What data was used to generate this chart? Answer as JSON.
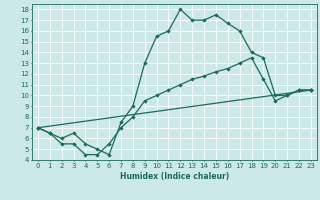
{
  "title": "",
  "xlabel": "Humidex (Indice chaleur)",
  "bg_color": "#cce8e8",
  "line_color": "#1a6b5a",
  "grid_color": "#b0d8d8",
  "xlim": [
    -0.5,
    23.5
  ],
  "ylim": [
    4,
    18.5
  ],
  "xticks": [
    0,
    1,
    2,
    3,
    4,
    5,
    6,
    7,
    8,
    9,
    10,
    11,
    12,
    13,
    14,
    15,
    16,
    17,
    18,
    19,
    20,
    21,
    22,
    23
  ],
  "yticks": [
    4,
    5,
    6,
    7,
    8,
    9,
    10,
    11,
    12,
    13,
    14,
    15,
    16,
    17,
    18
  ],
  "line1_x": [
    0,
    1,
    2,
    3,
    4,
    5,
    6,
    7,
    8,
    9,
    10,
    11,
    12,
    13,
    14,
    15,
    16,
    17,
    18,
    19,
    20,
    21,
    22,
    23
  ],
  "line1_y": [
    7.0,
    6.5,
    6.0,
    6.5,
    5.5,
    5.0,
    4.5,
    7.5,
    9.0,
    13.0,
    15.5,
    16.0,
    18.0,
    17.0,
    17.0,
    17.5,
    16.7,
    16.0,
    14.0,
    13.5,
    10.0,
    10.0,
    10.5,
    10.5
  ],
  "line2_x": [
    0,
    1,
    2,
    3,
    4,
    5,
    6,
    7,
    8,
    9,
    10,
    11,
    12,
    13,
    14,
    15,
    16,
    17,
    18,
    19,
    20,
    21,
    22,
    23
  ],
  "line2_y": [
    7.0,
    6.5,
    5.5,
    5.5,
    4.5,
    4.5,
    5.5,
    7.0,
    8.0,
    9.5,
    10.0,
    10.5,
    11.0,
    11.5,
    11.8,
    12.2,
    12.5,
    13.0,
    13.5,
    11.5,
    9.5,
    10.0,
    10.5,
    10.5
  ],
  "line3_x": [
    0,
    23
  ],
  "line3_y": [
    7.0,
    10.5
  ]
}
